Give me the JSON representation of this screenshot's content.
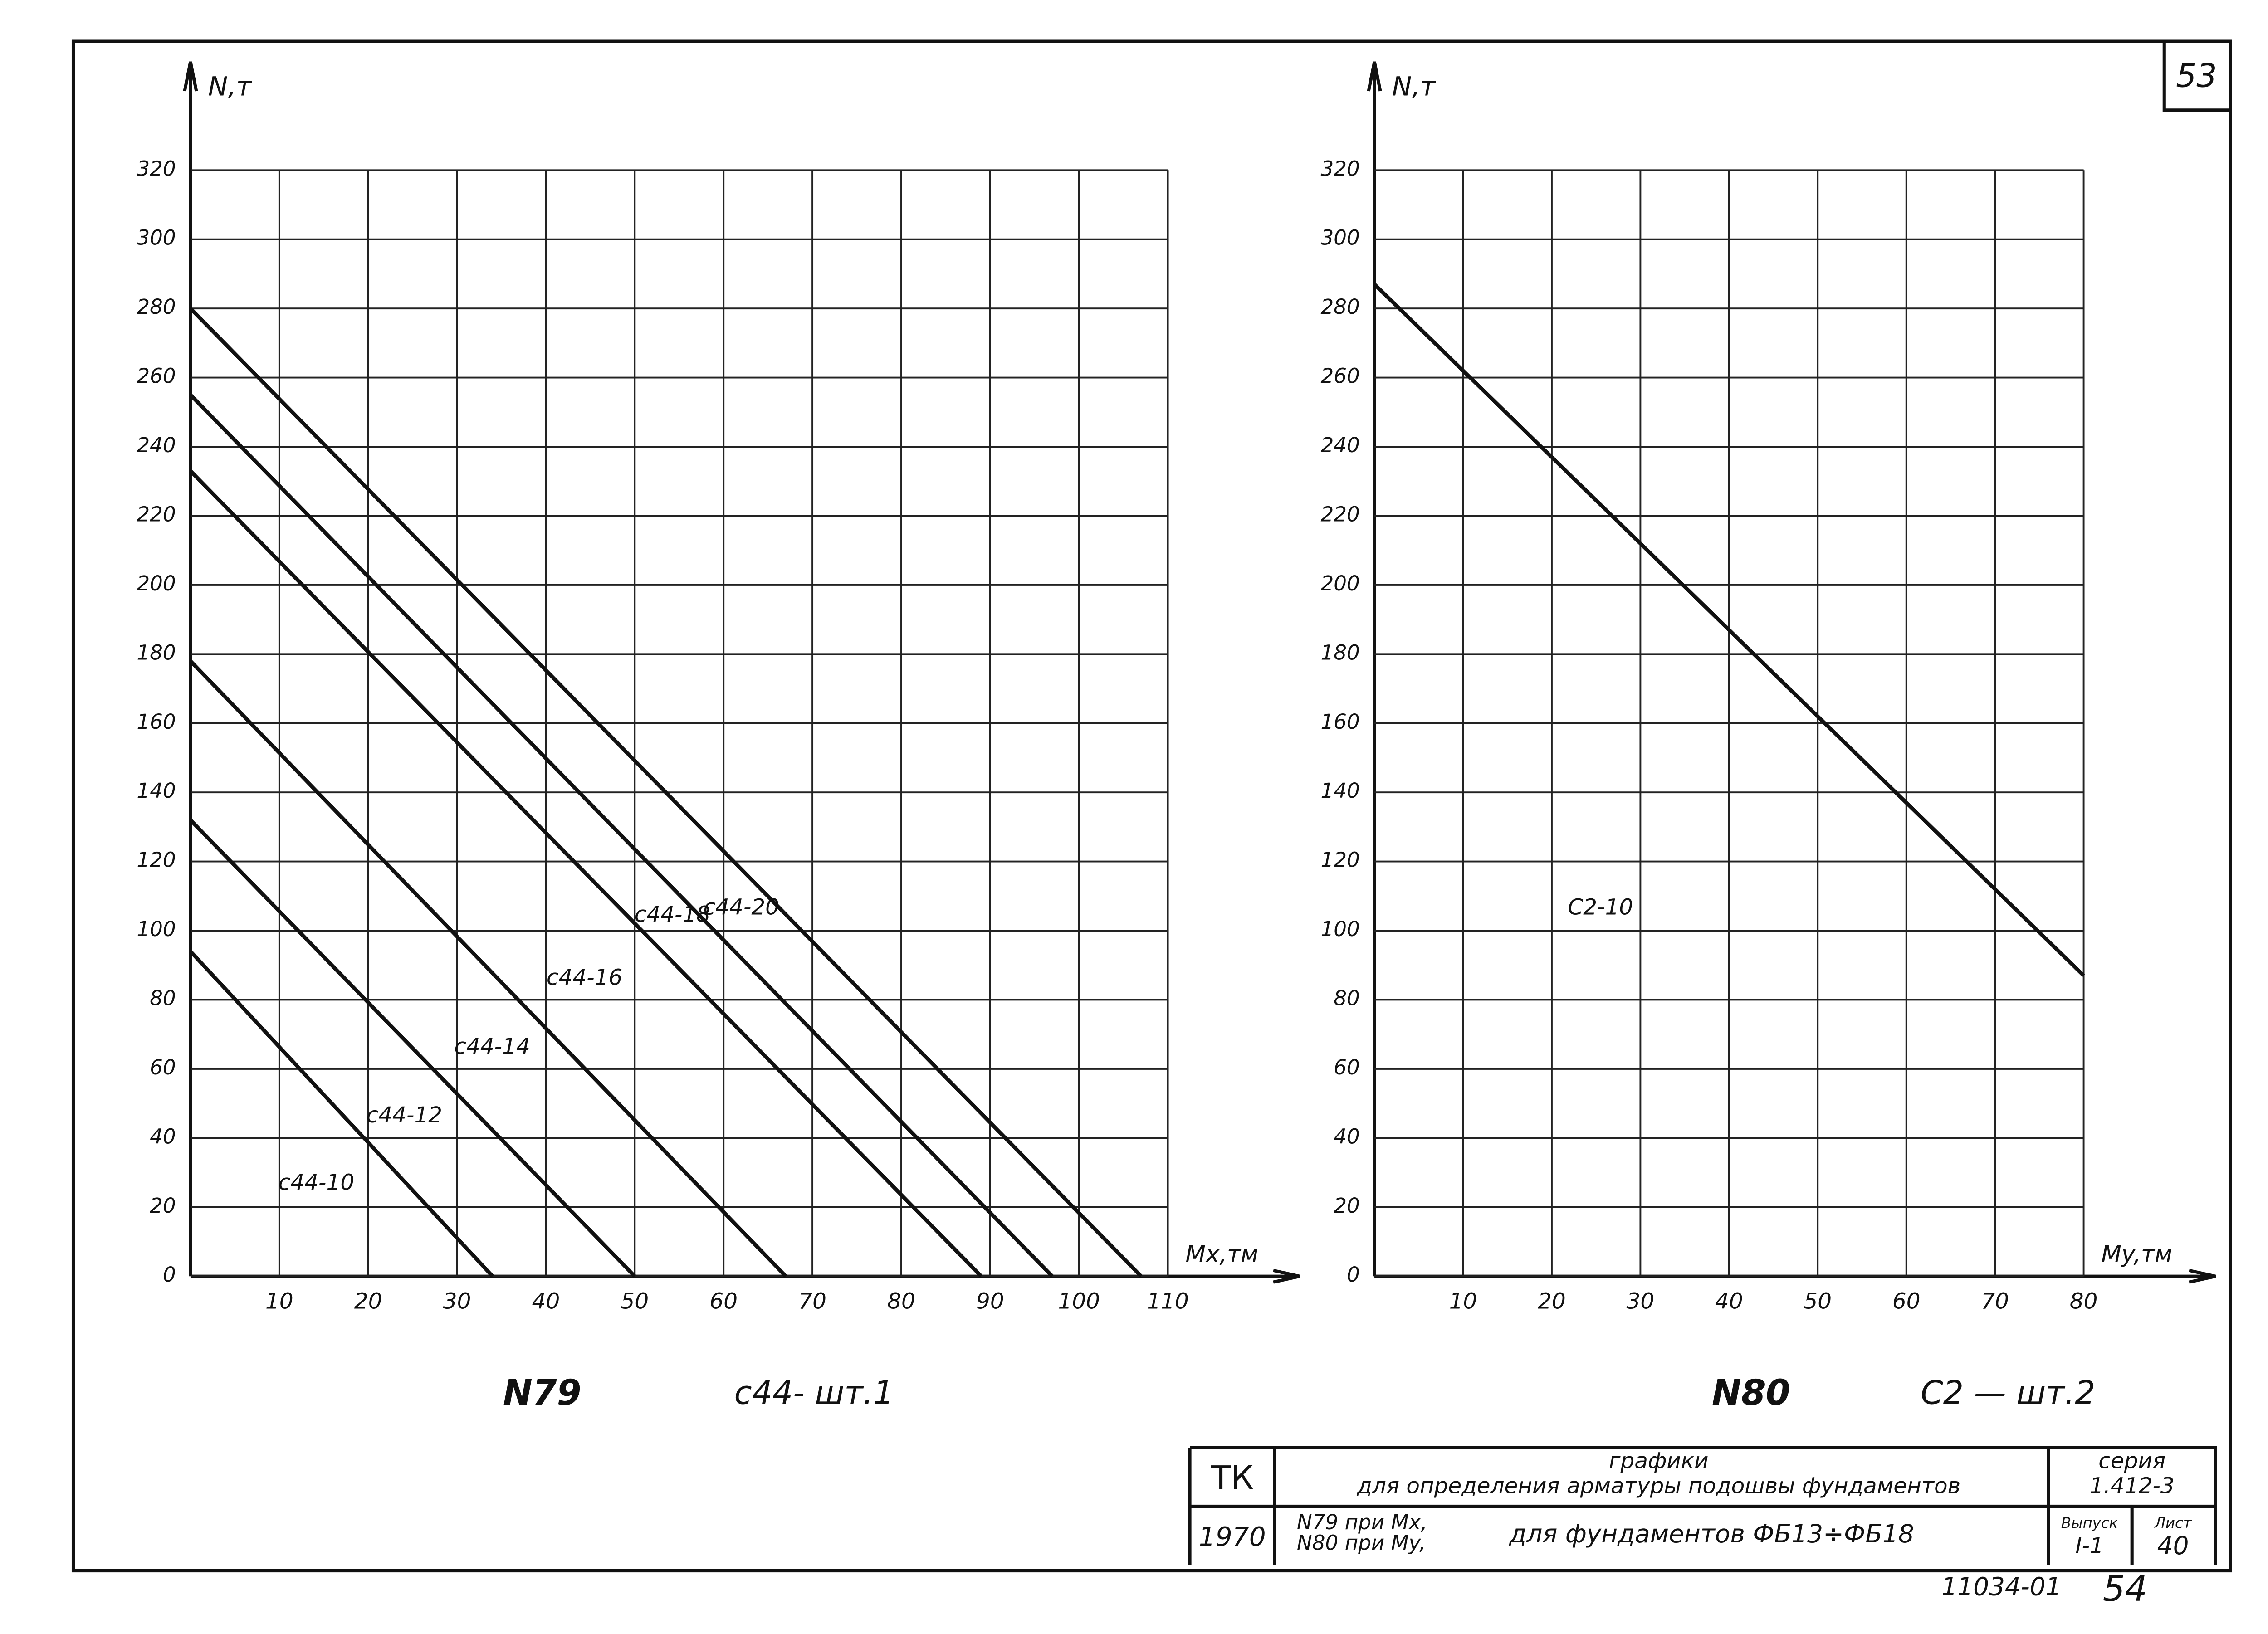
{
  "chart_data": [
    {
      "type": "line",
      "y_label": "N,т",
      "x_label": "Mx,тм",
      "caption": "N79",
      "note": "c44- шт.1",
      "xlim": [
        0,
        110
      ],
      "ylim": [
        0,
        320
      ],
      "xticks": [
        10,
        20,
        30,
        40,
        50,
        60,
        70,
        80,
        90,
        100,
        110
      ],
      "yticks": [
        0,
        20,
        40,
        60,
        80,
        100,
        120,
        140,
        160,
        180,
        200,
        220,
        240,
        260,
        280,
        300,
        320
      ],
      "grid": true,
      "series": [
        {
          "name": "c44-10",
          "color": "#111111",
          "x": [
            0,
            34
          ],
          "values": [
            94,
            0
          ]
        },
        {
          "name": "c44-12",
          "color": "#111111",
          "x": [
            0,
            50
          ],
          "values": [
            132,
            0
          ]
        },
        {
          "name": "c44-14",
          "color": "#111111",
          "x": [
            0,
            67
          ],
          "values": [
            178,
            0
          ]
        },
        {
          "name": "c44-16",
          "color": "#111111",
          "x": [
            0,
            89
          ],
          "values": [
            233,
            0
          ]
        },
        {
          "name": "c44-18",
          "color": "#111111",
          "x": [
            0,
            97
          ],
          "values": [
            255,
            0
          ]
        },
        {
          "name": "c44-20",
          "color": "#111111",
          "x": [
            0,
            107
          ],
          "values": [
            280,
            0
          ]
        }
      ]
    },
    {
      "type": "line",
      "y_label": "N,т",
      "x_label": "My,тм",
      "caption": "N80",
      "note": "C2 — шт.2",
      "xlim": [
        0,
        80
      ],
      "ylim": [
        0,
        320
      ],
      "xticks": [
        10,
        20,
        30,
        40,
        50,
        60,
        70,
        80
      ],
      "yticks": [
        0,
        20,
        40,
        60,
        80,
        100,
        120,
        140,
        160,
        180,
        200,
        220,
        240,
        260,
        280,
        300,
        320
      ],
      "grid": true,
      "series": [
        {
          "name": "C2-10",
          "color": "#111111",
          "x": [
            0,
            80
          ],
          "values": [
            287,
            87
          ]
        }
      ]
    }
  ],
  "sheet": {
    "page_number": "53",
    "org": "ТК",
    "year": "1970",
    "title": "графики",
    "title_line2": "для определения арматуры подошвы фундаментов",
    "desc_line1": "N79 при Mx,",
    "desc_line2": "N80 при My,",
    "desc_main": "для фундаментов ФБ13÷ФБ18",
    "series_label": "серия",
    "series_value": "1.412-3",
    "issue_label": "Выпуск",
    "issue_value": "I-1",
    "sheet_label": "Лист",
    "sheet_value": "40",
    "archive_number": "11034-01",
    "stamp_number": "54"
  }
}
